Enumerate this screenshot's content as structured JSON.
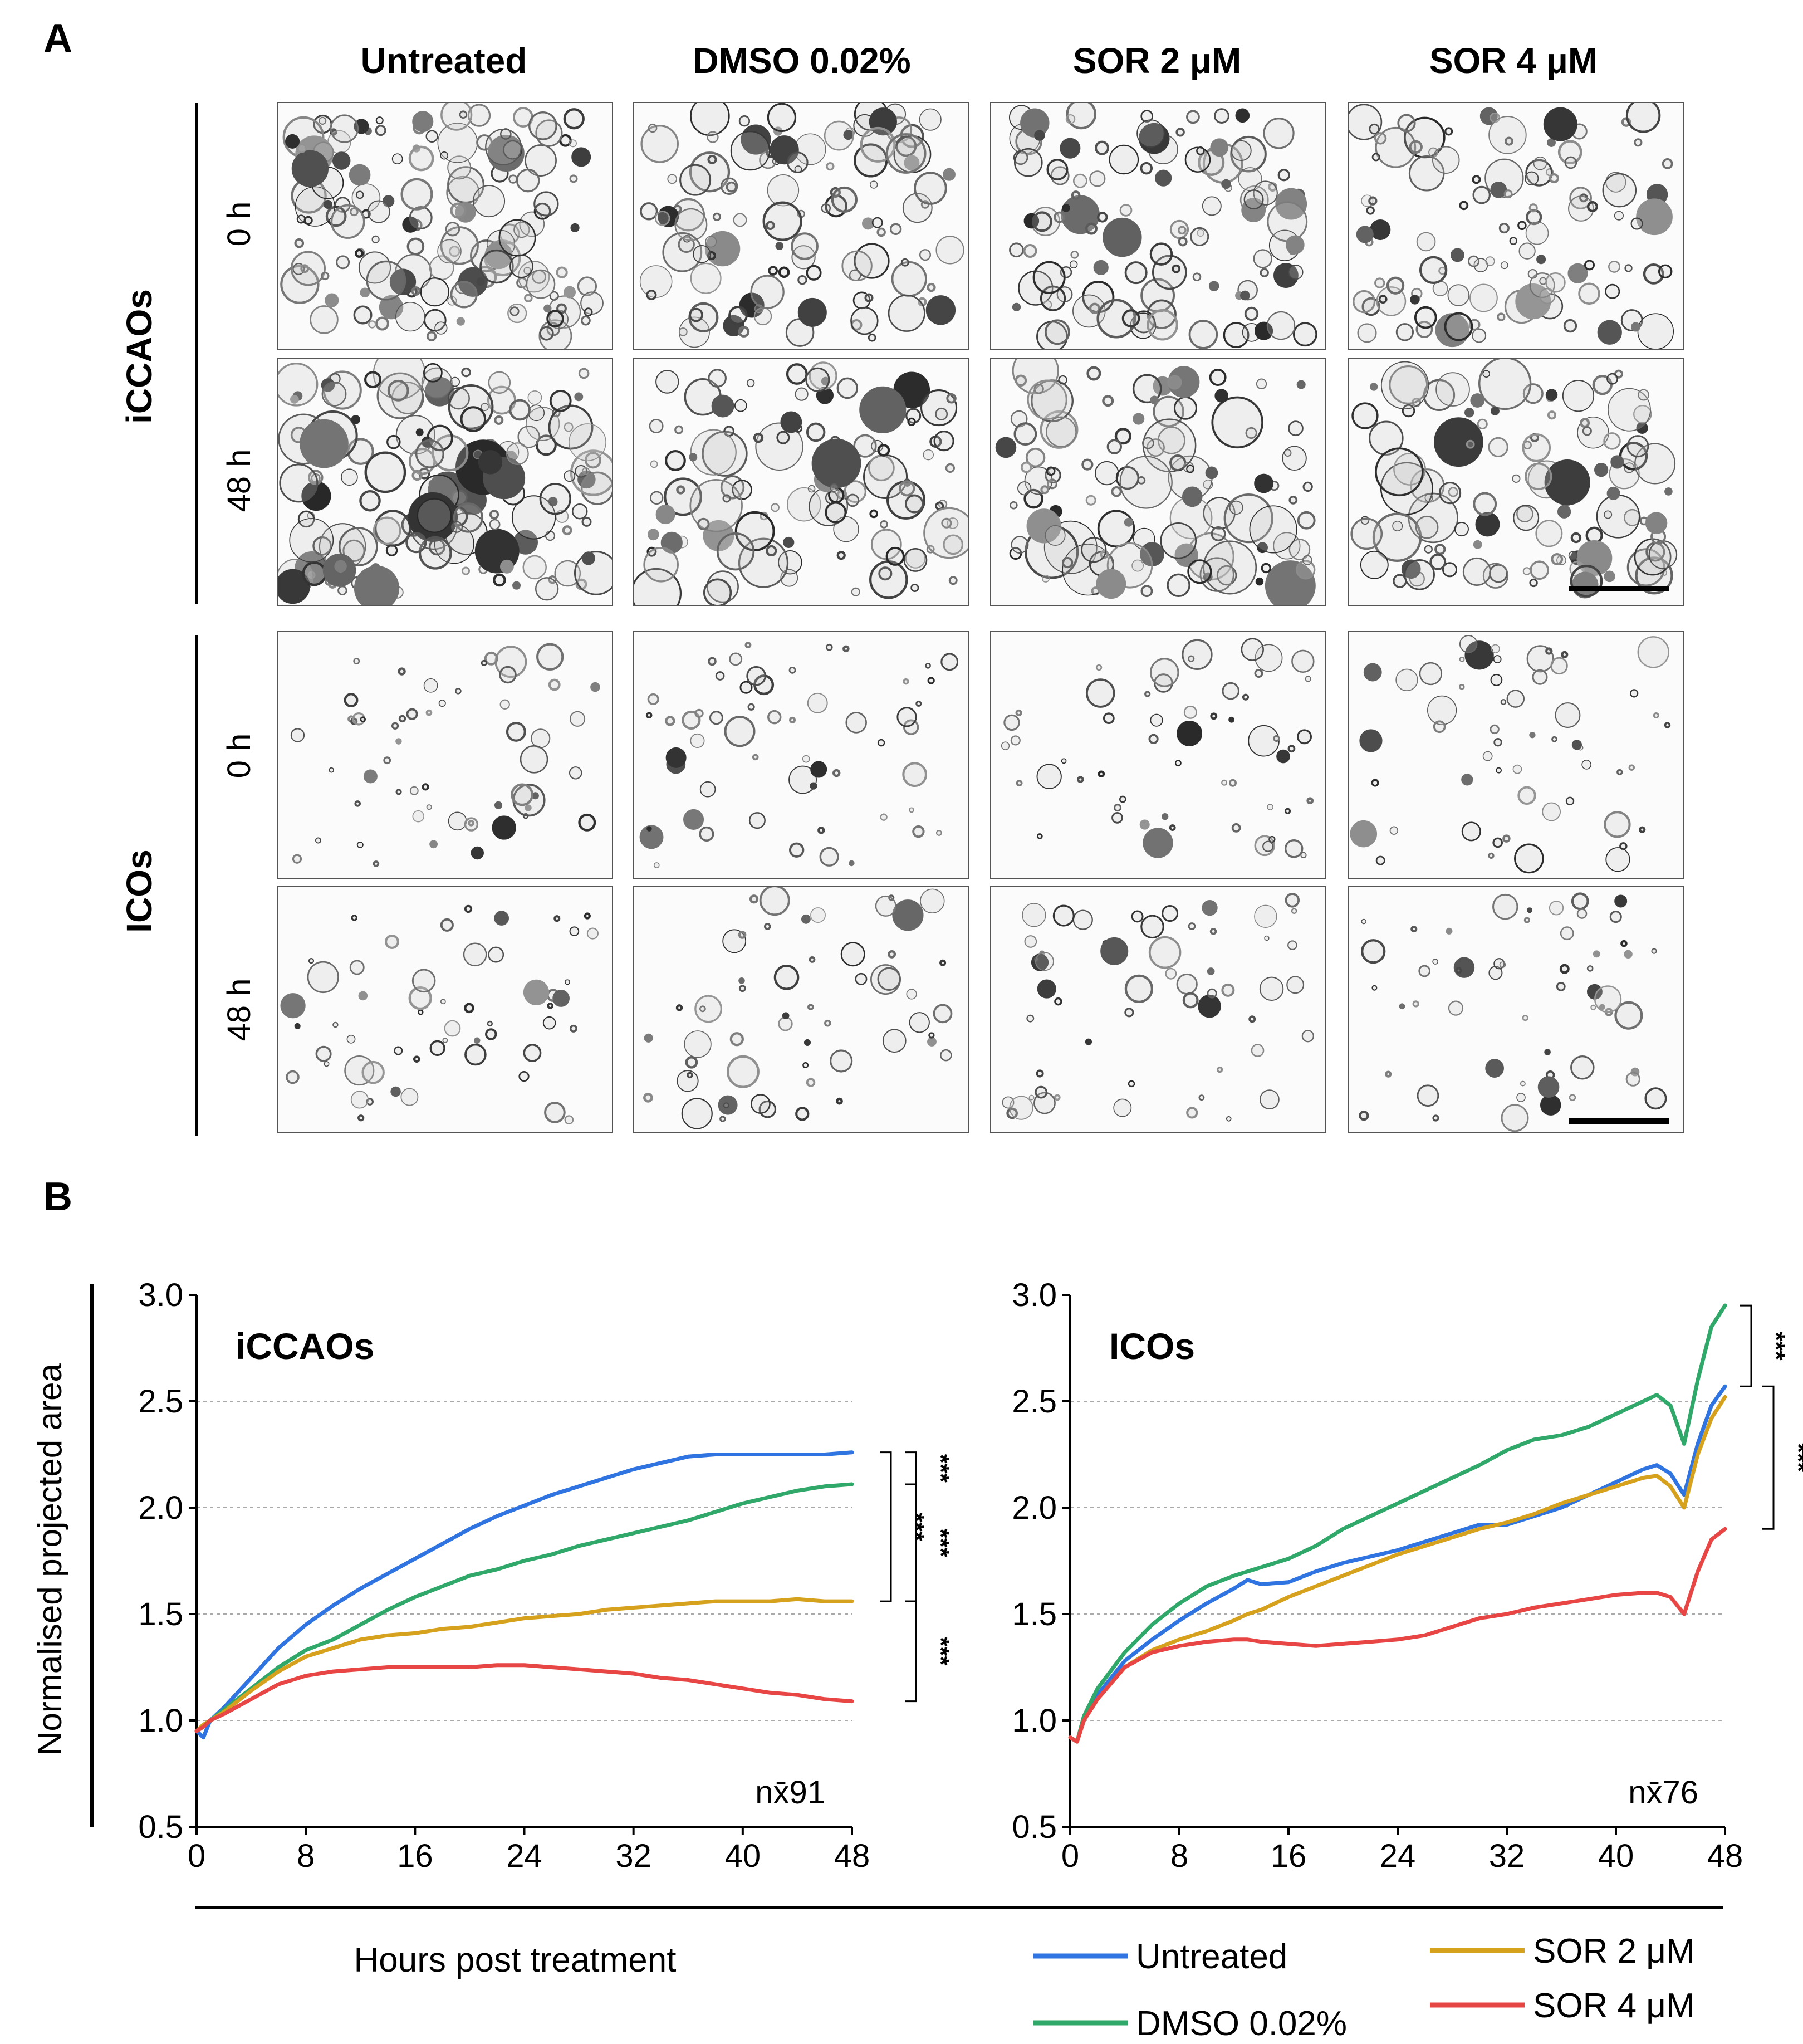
{
  "panels": {
    "a": "A",
    "b": "B"
  },
  "panel_a": {
    "columns": [
      "Untreated",
      "DMSO 0.02%",
      "SOR 2 μM",
      "SOR 4 μM"
    ],
    "groups": [
      {
        "name": "iCCAOs",
        "timepoints": [
          "0 h",
          "48 h"
        ]
      },
      {
        "name": "ICOs",
        "timepoints": [
          "0 h",
          "48 h"
        ]
      }
    ]
  },
  "chart_data": [
    {
      "type": "line",
      "title": "iCCAOs",
      "ylabel": "Normalised projected area",
      "xlabel": "Hours post treatment",
      "xlim": [
        0,
        48
      ],
      "ylim": [
        0.5,
        3.0
      ],
      "xticks": [
        "0",
        "8",
        "16",
        "24",
        "32",
        "40",
        "48"
      ],
      "yticks": [
        "0.5",
        "1.0",
        "1.5",
        "2.0",
        "2.5",
        "3.0"
      ],
      "grid": true,
      "annotation": "nx̄91",
      "significance": [
        "***",
        "***",
        "***",
        "***"
      ],
      "x": [
        0,
        0.5,
        1,
        2,
        4,
        6,
        8,
        10,
        12,
        14,
        16,
        18,
        20,
        22,
        24,
        26,
        28,
        30,
        32,
        34,
        36,
        38,
        40,
        42,
        44,
        46,
        48
      ],
      "series": [
        {
          "name": "Untreated",
          "color": "#2f74e0",
          "values": [
            0.95,
            0.92,
            1.0,
            1.06,
            1.2,
            1.34,
            1.45,
            1.54,
            1.62,
            1.69,
            1.76,
            1.83,
            1.9,
            1.96,
            2.01,
            2.06,
            2.1,
            2.14,
            2.18,
            2.21,
            2.24,
            2.25,
            2.25,
            2.25,
            2.25,
            2.25,
            2.26
          ]
        },
        {
          "name": "DMSO 0.02%",
          "color": "#2fa86a",
          "values": [
            0.95,
            0.97,
            1.0,
            1.05,
            1.15,
            1.25,
            1.33,
            1.38,
            1.45,
            1.52,
            1.58,
            1.63,
            1.68,
            1.71,
            1.75,
            1.78,
            1.82,
            1.85,
            1.88,
            1.91,
            1.94,
            1.98,
            2.02,
            2.05,
            2.08,
            2.1,
            2.11
          ]
        },
        {
          "name": "SOR 2 μM",
          "color": "#d6a11c",
          "values": [
            0.95,
            0.98,
            1.0,
            1.04,
            1.14,
            1.23,
            1.3,
            1.34,
            1.38,
            1.4,
            1.41,
            1.43,
            1.44,
            1.46,
            1.48,
            1.49,
            1.5,
            1.52,
            1.53,
            1.54,
            1.55,
            1.56,
            1.56,
            1.56,
            1.57,
            1.56,
            1.56
          ]
        },
        {
          "name": "SOR 4 μM",
          "color": "#e84545",
          "values": [
            0.95,
            0.97,
            1.0,
            1.03,
            1.1,
            1.17,
            1.21,
            1.23,
            1.24,
            1.25,
            1.25,
            1.25,
            1.25,
            1.26,
            1.26,
            1.25,
            1.24,
            1.23,
            1.22,
            1.2,
            1.19,
            1.17,
            1.15,
            1.13,
            1.12,
            1.1,
            1.09
          ]
        }
      ]
    },
    {
      "type": "line",
      "title": "ICOs",
      "xlabel": "Hours post treatment",
      "xlim": [
        0,
        48
      ],
      "ylim": [
        0.5,
        3.0
      ],
      "xticks": [
        "0",
        "8",
        "16",
        "24",
        "32",
        "40",
        "48"
      ],
      "yticks": [
        "0.5",
        "1.0",
        "1.5",
        "2.0",
        "2.5",
        "3.0"
      ],
      "grid": true,
      "annotation": "nx̄76",
      "significance": [
        "***",
        "***"
      ],
      "x": [
        0,
        0.5,
        1,
        2,
        4,
        6,
        8,
        10,
        12,
        13,
        14,
        16,
        18,
        20,
        22,
        24,
        26,
        28,
        30,
        32,
        34,
        36,
        38,
        40,
        42,
        43,
        44,
        45,
        46,
        47,
        48
      ],
      "series": [
        {
          "name": "Untreated",
          "color": "#2f74e0",
          "values": [
            0.92,
            0.9,
            1.0,
            1.12,
            1.28,
            1.38,
            1.47,
            1.55,
            1.62,
            1.66,
            1.64,
            1.65,
            1.7,
            1.74,
            1.77,
            1.8,
            1.84,
            1.88,
            1.92,
            1.92,
            1.96,
            2.0,
            2.06,
            2.12,
            2.18,
            2.2,
            2.16,
            2.06,
            2.3,
            2.48,
            2.57
          ]
        },
        {
          "name": "DMSO 0.02%",
          "color": "#2fa86a",
          "values": [
            0.92,
            0.9,
            1.02,
            1.15,
            1.32,
            1.45,
            1.55,
            1.63,
            1.68,
            1.7,
            1.72,
            1.76,
            1.82,
            1.9,
            1.96,
            2.02,
            2.08,
            2.14,
            2.2,
            2.27,
            2.32,
            2.34,
            2.38,
            2.44,
            2.5,
            2.53,
            2.48,
            2.3,
            2.6,
            2.85,
            2.95
          ]
        },
        {
          "name": "SOR 2 μM",
          "color": "#d6a11c",
          "values": [
            0.92,
            0.9,
            1.0,
            1.1,
            1.25,
            1.33,
            1.38,
            1.42,
            1.47,
            1.5,
            1.52,
            1.58,
            1.63,
            1.68,
            1.73,
            1.78,
            1.82,
            1.86,
            1.9,
            1.93,
            1.97,
            2.02,
            2.06,
            2.1,
            2.14,
            2.15,
            2.1,
            2.0,
            2.25,
            2.42,
            2.52
          ]
        },
        {
          "name": "SOR 4 μM",
          "color": "#e84545",
          "values": [
            0.92,
            0.9,
            1.0,
            1.1,
            1.25,
            1.32,
            1.35,
            1.37,
            1.38,
            1.38,
            1.37,
            1.36,
            1.35,
            1.36,
            1.37,
            1.38,
            1.4,
            1.44,
            1.48,
            1.5,
            1.53,
            1.55,
            1.57,
            1.59,
            1.6,
            1.6,
            1.58,
            1.5,
            1.7,
            1.85,
            1.9
          ]
        }
      ]
    }
  ],
  "legend": [
    "Untreated",
    "DMSO 0.02%",
    "SOR 2 μM",
    "SOR 4 μM"
  ]
}
